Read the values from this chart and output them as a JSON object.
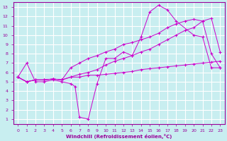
{
  "background_color": "#c8eef0",
  "line_color": "#cc00cc",
  "grid_color": "#ffffff",
  "xlabel": "Windchill (Refroidissement éolien,°C)",
  "xlabel_color": "#990099",
  "tick_color": "#990099",
  "xlim": [
    -0.5,
    23.5
  ],
  "ylim": [
    0.5,
    13.5
  ],
  "xticks": [
    0,
    1,
    2,
    3,
    4,
    5,
    6,
    7,
    8,
    9,
    10,
    11,
    12,
    13,
    14,
    15,
    16,
    17,
    18,
    19,
    20,
    21,
    22,
    23
  ],
  "yticks": [
    1,
    2,
    3,
    4,
    5,
    6,
    7,
    8,
    9,
    10,
    11,
    12,
    13
  ],
  "lines": [
    {
      "x": [
        0,
        1,
        2,
        3,
        4,
        5,
        6,
        7,
        8,
        9,
        10,
        11,
        12,
        13,
        14,
        15,
        16,
        17,
        18,
        19,
        20,
        21,
        22,
        23
      ],
      "y": [
        5.5,
        5.0,
        5.2,
        5.2,
        5.3,
        5.2,
        5.5,
        5.5,
        5.7,
        5.7,
        5.8,
        5.9,
        6.0,
        6.1,
        6.3,
        6.4,
        6.5,
        6.6,
        6.7,
        6.8,
        6.9,
        7.0,
        7.1,
        7.2
      ]
    },
    {
      "x": [
        0,
        1,
        2,
        3,
        4,
        5,
        6,
        7,
        8,
        9,
        10,
        11,
        12,
        13,
        14,
        15,
        16,
        17,
        18,
        19,
        20,
        21,
        22,
        23
      ],
      "y": [
        5.5,
        5.0,
        5.2,
        5.2,
        5.3,
        5.2,
        6.5,
        7.0,
        7.5,
        7.8,
        8.2,
        8.5,
        9.0,
        9.2,
        9.5,
        9.8,
        10.2,
        10.8,
        11.2,
        11.5,
        11.7,
        11.5,
        8.0,
        6.5
      ]
    },
    {
      "x": [
        0,
        1,
        2,
        3,
        4,
        5,
        6,
        6.5,
        7,
        8,
        9,
        10,
        11,
        12,
        13,
        14,
        15,
        16,
        17,
        18,
        20,
        21,
        22,
        23
      ],
      "y": [
        5.5,
        7.0,
        5.0,
        5.0,
        5.2,
        5.0,
        4.8,
        4.5,
        1.2,
        1.0,
        4.8,
        7.5,
        7.5,
        8.2,
        7.8,
        9.8,
        12.5,
        13.2,
        12.7,
        11.5,
        10.0,
        9.8,
        6.5,
        6.5
      ]
    },
    {
      "x": [
        0,
        1,
        2,
        3,
        4,
        5,
        6,
        7,
        8,
        9,
        10,
        11,
        12,
        13,
        14,
        15,
        16,
        17,
        18,
        19,
        20,
        21,
        22,
        23
      ],
      "y": [
        5.5,
        5.0,
        5.2,
        5.2,
        5.3,
        5.2,
        5.5,
        5.8,
        6.0,
        6.3,
        6.8,
        7.2,
        7.5,
        7.8,
        8.2,
        8.5,
        9.0,
        9.5,
        10.0,
        10.5,
        10.8,
        11.5,
        11.8,
        8.2
      ]
    }
  ]
}
